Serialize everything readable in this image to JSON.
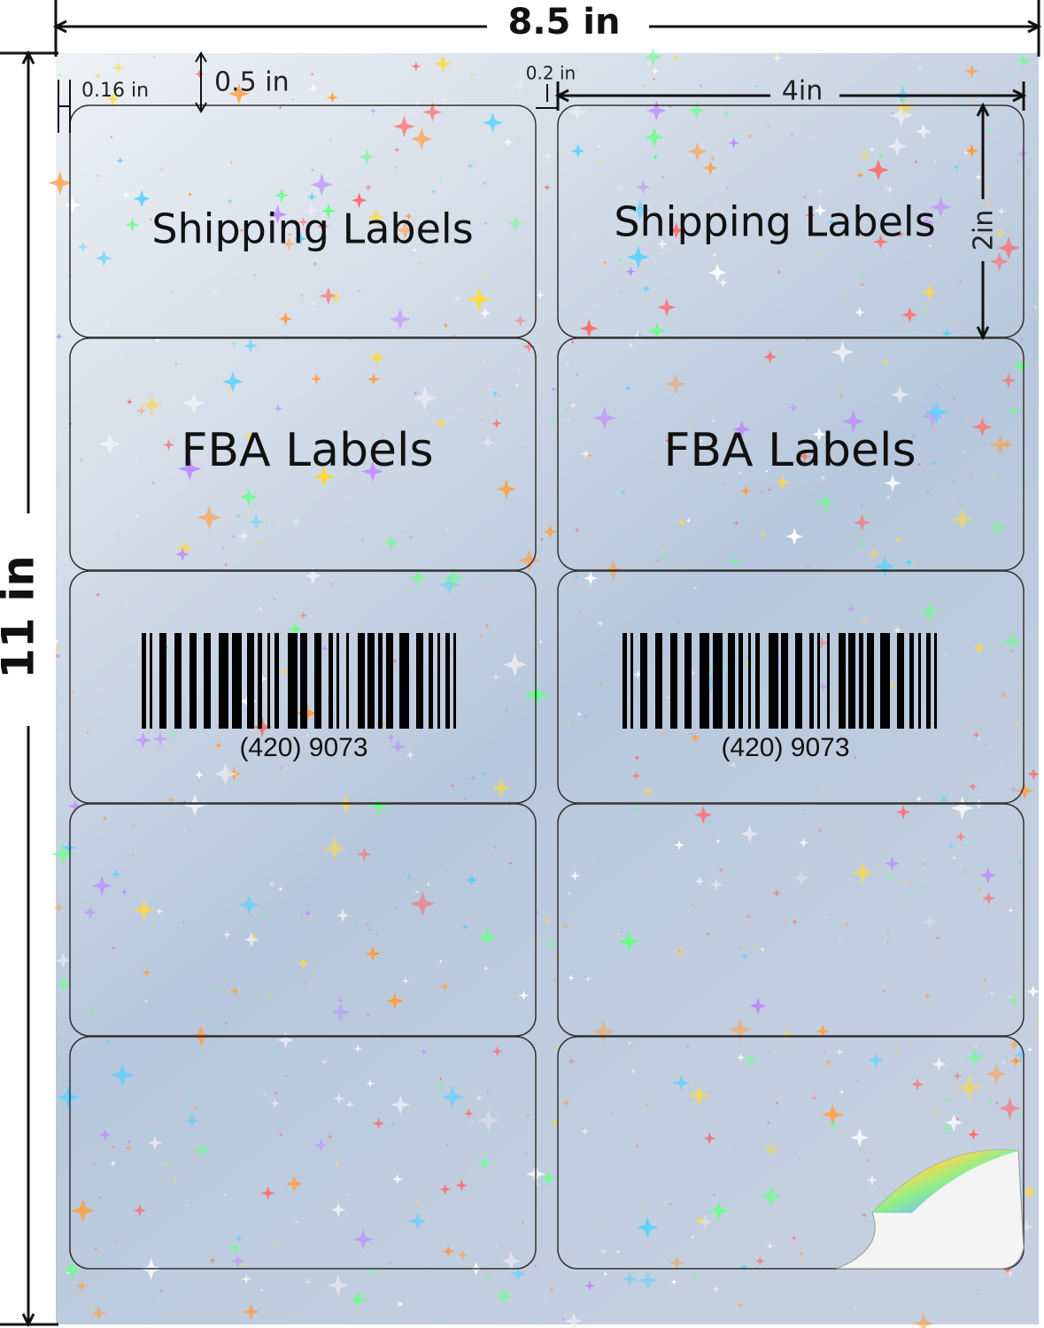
{
  "dimensions": {
    "width": "8.5 in",
    "height": "11 in",
    "left_margin": "0.16 in",
    "top_margin": "0.5 in",
    "gap": "0.2 in",
    "label_width": "4in",
    "label_height": "2in"
  },
  "labels": [
    {
      "text": "Shipping Labels"
    },
    {
      "text": "Shipping Labels"
    },
    {
      "text": "FBA Labels"
    },
    {
      "text": "FBA Labels"
    },
    {
      "barcode_text": "(420) 9073"
    },
    {
      "barcode_text": "(420) 9073"
    }
  ]
}
